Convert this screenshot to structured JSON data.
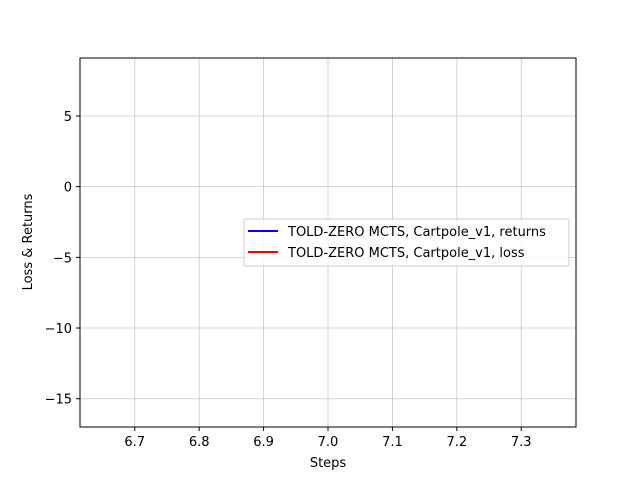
{
  "chart_data": {
    "type": "line",
    "title": "",
    "xlabel": "Steps",
    "ylabel": "Loss & Returns",
    "xlim": [
      6.615,
      7.385
    ],
    "ylim": [
      -17,
      9.1
    ],
    "xticks": [
      6.7,
      6.8,
      6.9,
      7.0,
      7.1,
      7.2,
      7.3
    ],
    "xtick_labels": [
      "6.7",
      "6.8",
      "6.9",
      "7.0",
      "7.1",
      "7.2",
      "7.3"
    ],
    "yticks": [
      5,
      0,
      -5,
      -10,
      -15
    ],
    "ytick_labels": [
      "5",
      "0",
      "−5",
      "−10",
      "−15"
    ],
    "grid": true,
    "legend_position": "center-right",
    "series": [
      {
        "name": "TOLD-ZERO MCTS, Cartpole_v1, returns",
        "color": "#0000ff",
        "x": [],
        "y": []
      },
      {
        "name": "TOLD-ZERO MCTS, Cartpole_v1, loss",
        "color": "#ff0000",
        "x": [],
        "y": []
      }
    ]
  }
}
